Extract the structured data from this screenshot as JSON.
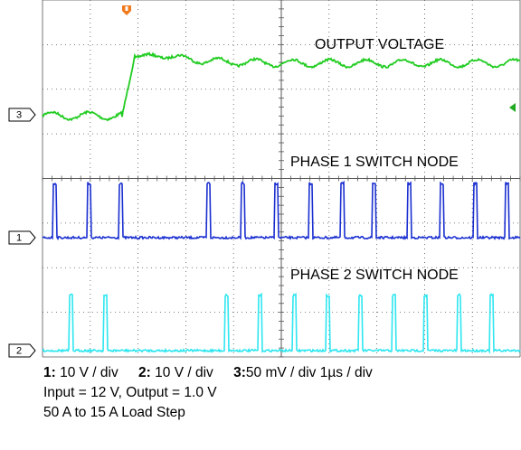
{
  "trace_labels": [
    "OUTPUT VOLTAGE",
    "PHASE 1 SWITCH NODE",
    "PHASE 2 SWITCH NODE"
  ],
  "channel_markers": [
    "3",
    "1",
    "2"
  ],
  "scales": [
    {
      "channel": "1:",
      "setting": "10 V / div"
    },
    {
      "channel": "2:",
      "setting": "10 V / div"
    },
    {
      "channel": "3:",
      "setting": "50 mV / div"
    }
  ],
  "time_base": "1µs / div",
  "notes": [
    "Input = 12 V, Output = 1.0 V",
    "50 A to 15 A Load Step"
  ]
}
